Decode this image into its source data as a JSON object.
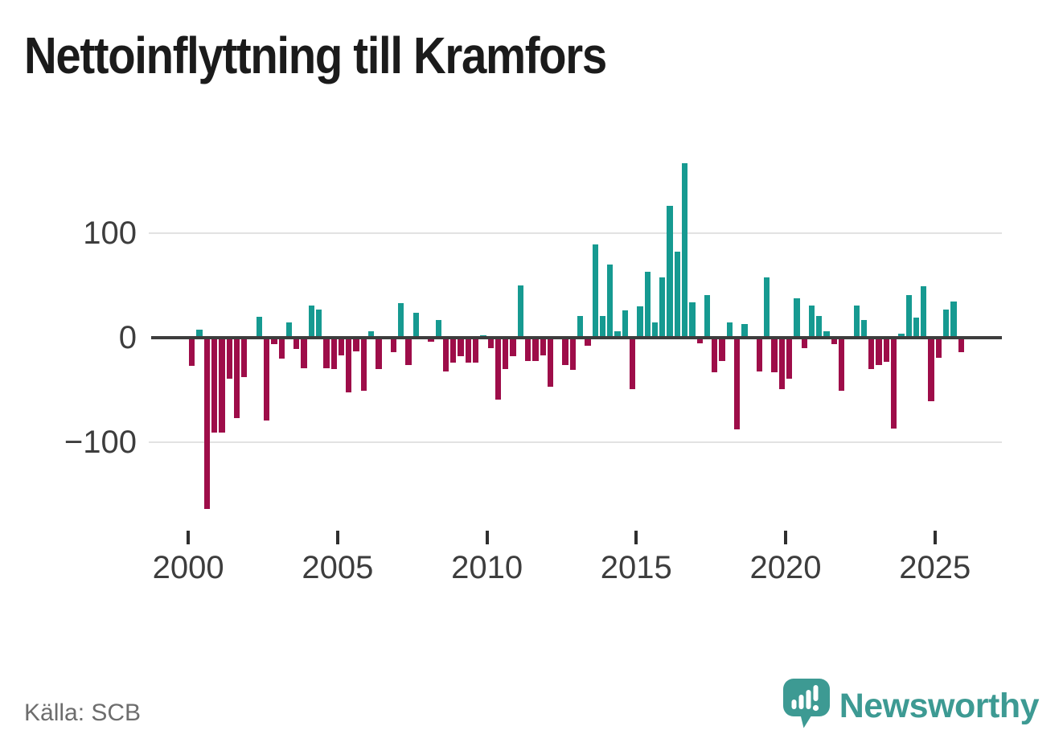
{
  "title": "Nettoinflyttning till Kramfors",
  "source": "Källa: SCB",
  "branding": {
    "wordmark": "Newsworthy",
    "logo_icon": "newsworthy-speech-bubble-bar-chart-icon"
  },
  "colors": {
    "positive_bar": "#169a91",
    "negative_bar": "#9e0d49",
    "zero_line": "#3d3d3d",
    "gridline": "#e2e2e2",
    "axis_text": "#3d3d3d",
    "title_text": "#1b1b1b",
    "source_text": "#6d6d6d",
    "brand_teal": "#3d9a93"
  },
  "chart_data": {
    "type": "bar",
    "title": "Nettoinflyttning till Kramfors",
    "frequency": "quarterly",
    "x_start": "2000Q1",
    "x_end": "2025Q4",
    "x_tick_labels": [
      "2000",
      "2005",
      "2010",
      "2015",
      "2020",
      "2025"
    ],
    "x_tick_years": [
      2000,
      2005,
      2010,
      2015,
      2020,
      2025
    ],
    "y_tick_labels": [
      "100",
      "0",
      "−100"
    ],
    "y_tick_values": [
      100,
      0,
      -100
    ],
    "ylim": [
      -180,
      180
    ],
    "grid": "horizontal-only",
    "legend": "none",
    "series": [
      {
        "name": "Nettoinflyttning",
        "values": [
          -27,
          8,
          -164,
          -91,
          -91,
          -39,
          -77,
          -38,
          0,
          20,
          -79,
          -6,
          -20,
          15,
          -11,
          -29,
          31,
          27,
          -29,
          -30,
          -17,
          -52,
          -13,
          -51,
          6,
          -30,
          0,
          -14,
          33,
          -26,
          24,
          0,
          -4,
          17,
          -32,
          -24,
          -18,
          -24,
          -24,
          2,
          -10,
          -59,
          -30,
          -18,
          50,
          -22,
          -22,
          -17,
          -47,
          0,
          -26,
          -31,
          21,
          -8,
          89,
          21,
          70,
          6,
          26,
          -49,
          30,
          63,
          15,
          58,
          126,
          82,
          167,
          34,
          -5,
          41,
          -33,
          -22,
          15,
          -88,
          13,
          0,
          -32,
          58,
          -33,
          -49,
          -39,
          38,
          -10,
          31,
          21,
          6,
          -6,
          -51,
          0,
          31,
          17,
          -30,
          -26,
          -23,
          -87,
          4,
          41,
          19,
          49,
          -61,
          -19,
          27,
          35,
          -14
        ]
      }
    ]
  }
}
